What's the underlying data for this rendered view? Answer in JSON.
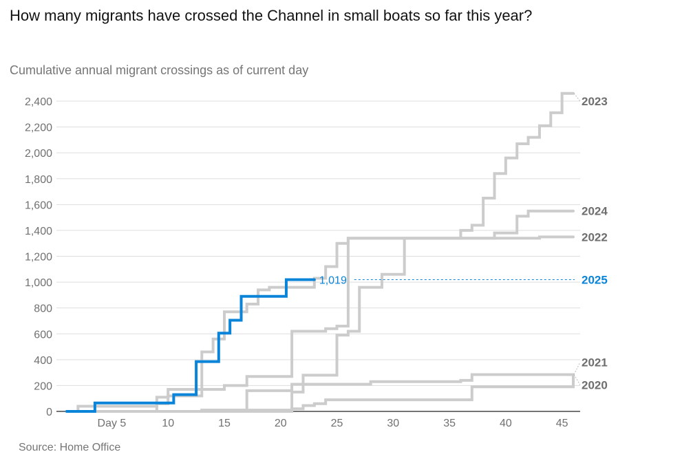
{
  "title": "How many migrants have crossed the Channel in small boats so far this year?",
  "subtitle": "Cumulative annual migrant crossings as of current day",
  "source": "Source: Home Office",
  "colors": {
    "highlight": "#0a84d8",
    "other": "#cccccc",
    "label_grey": "#6e6e6e",
    "grid": "#dddddd",
    "axis": "#222222"
  },
  "chart_data": {
    "type": "line",
    "step": true,
    "title": "How many migrants have crossed the Channel in small boats so far this year?",
    "subtitle": "Cumulative annual migrant crossings as of current day",
    "xlabel": "Day",
    "ylabel": "",
    "xlim": [
      1,
      46
    ],
    "ylim": [
      0,
      2400
    ],
    "grid": true,
    "yticks": [
      0,
      200,
      400,
      600,
      800,
      1000,
      1200,
      1400,
      1600,
      1800,
      2000,
      2200,
      2400
    ],
    "ytick_labels": [
      "0",
      "200",
      "400",
      "600",
      "800",
      "1,000",
      "1,200",
      "1,400",
      "1,600",
      "1,800",
      "2,000",
      "2,200",
      "2,400"
    ],
    "xticks": [
      5,
      10,
      15,
      20,
      25,
      30,
      35,
      40,
      45
    ],
    "xtick_labels": [
      "Day 5",
      "10",
      "15",
      "20",
      "25",
      "30",
      "35",
      "40",
      "45"
    ],
    "legend": "direct labels right",
    "series": [
      {
        "name": "2020",
        "highlight": false,
        "x": [
          1,
          21,
          22,
          23,
          24,
          36,
          37,
          46
        ],
        "y": [
          0,
          20,
          45,
          60,
          90,
          90,
          190,
          285
        ]
      },
      {
        "name": "2021",
        "highlight": false,
        "x": [
          1,
          13,
          17,
          21,
          28,
          36,
          37,
          46
        ],
        "y": [
          0,
          10,
          160,
          210,
          230,
          240,
          285,
          285
        ]
      },
      {
        "name": "2022",
        "highlight": false,
        "x": [
          1,
          9,
          10,
          13,
          15,
          17,
          21,
          24,
          25,
          26,
          43,
          46
        ],
        "y": [
          0,
          60,
          120,
          170,
          200,
          270,
          620,
          640,
          660,
          1340,
          1350,
          1350
        ]
      },
      {
        "name": "2023",
        "highlight": false,
        "x": [
          1,
          2,
          9,
          10,
          13,
          14,
          15,
          17,
          18,
          19,
          23,
          24,
          25,
          26,
          36,
          37,
          38,
          39,
          40,
          41,
          42,
          43,
          44,
          45
        ],
        "y": [
          0,
          40,
          110,
          170,
          460,
          560,
          770,
          830,
          940,
          960,
          1030,
          1120,
          1300,
          1340,
          1400,
          1440,
          1650,
          1840,
          1960,
          2070,
          2120,
          2210,
          2310,
          2460
        ]
      },
      {
        "name": "2024",
        "highlight": false,
        "x": [
          1,
          13,
          17,
          21,
          22,
          25,
          26,
          27,
          28,
          29,
          31,
          39,
          41,
          42,
          46
        ],
        "y": [
          0,
          10,
          10,
          150,
          280,
          590,
          620,
          960,
          960,
          1060,
          1340,
          1380,
          1510,
          1550,
          1550
        ]
      },
      {
        "name": "2025",
        "highlight": true,
        "x": [
          1,
          3.5,
          10.5,
          12.5,
          14.5,
          15.5,
          16.5,
          20.5,
          23
        ],
        "y": [
          0,
          65,
          130,
          385,
          605,
          705,
          890,
          1019,
          1019
        ],
        "end_label": "1,019"
      }
    ],
    "series_labels": [
      {
        "name": "2023",
        "value_position": 2400
      },
      {
        "name": "2024",
        "value_position": 1550
      },
      {
        "name": "2022",
        "value_position": 1350
      },
      {
        "name": "2025",
        "value_position": 1019
      },
      {
        "name": "2021",
        "value_position": 380
      },
      {
        "name": "2020",
        "value_position": 205
      }
    ]
  }
}
